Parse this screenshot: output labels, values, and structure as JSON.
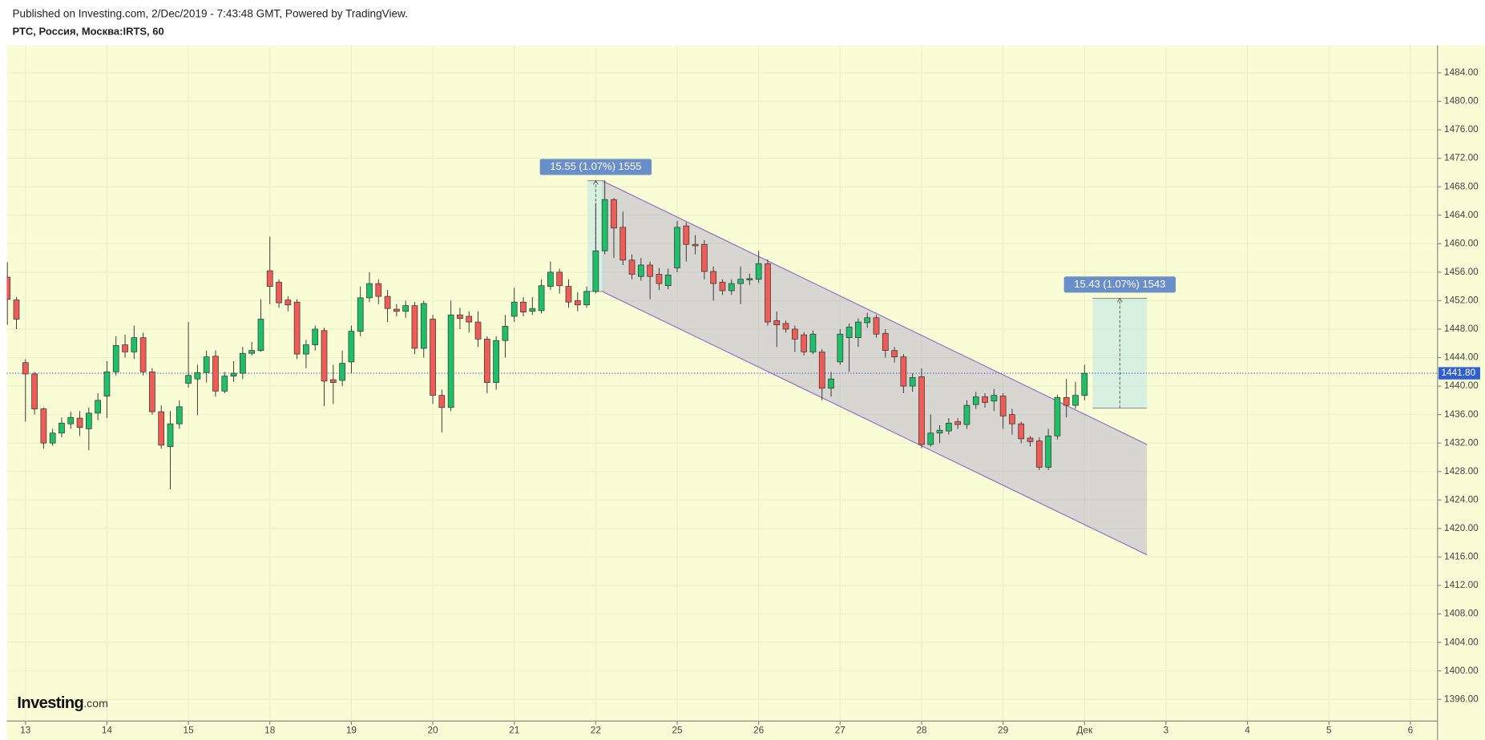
{
  "chart_data": {
    "type": "candlestick",
    "title": "РТС, Россия, Москва:IRTS, 60",
    "subtitle": "Published on Investing.com, 2/Dec/2019 - 7:43:48 GMT, Powered by TradingView.",
    "logo": "Investing",
    "logo_suffix": ".com",
    "up_color": "#1fbf6a",
    "down_color": "#ef5b56",
    "grid": true,
    "open": [
      1455.3,
      1452.1,
      1443.3,
      1441.7,
      1436.8,
      1432.0,
      1433.4,
      1434.7,
      1435.5,
      1434.0,
      1436.2,
      1438.6,
      1442.0,
      1445.8,
      1444.8,
      1446.8,
      1442.0,
      1436.4,
      1431.5,
      1434.7,
      1440.4,
      1441.0,
      1441.9,
      1444.2,
      1439.3,
      1441.4,
      1441.8,
      1444.6,
      1445.0,
      1456.2,
      1454.6,
      1452.1,
      1451.8,
      1444.5,
      1445.8,
      1447.8,
      1440.9,
      1440.8,
      1443.4,
      1447.7,
      1452.4,
      1454.4,
      1452.6,
      1450.8,
      1450.5,
      1451.3,
      1445.3,
      1449.4,
      1438.7,
      1437.0,
      1450.0,
      1449.8,
      1449.0,
      1446.6,
      1440.5,
      1446.4,
      1449.8,
      1451.8,
      1450.5,
      1450.6,
      1454.0,
      1456.0,
      1454.0,
      1452.0,
      1451.4,
      1453.3,
      1459.0,
      1466.2,
      1462.3,
      1457.7,
      1455.4,
      1457.0,
      1455.7,
      1454.1,
      1456.6,
      1462.5,
      1459.9,
      1459.9,
      1456.1,
      1454.6,
      1453.4,
      1454.4,
      1454.9,
      1455.0,
      1457.2,
      1449.2,
      1448.8,
      1448.0,
      1447.2,
      1444.8,
      1444.8,
      1439.7,
      1443.4,
      1446.8,
      1446.8,
      1448.9,
      1449.6,
      1447.4,
      1445.0,
      1444.1,
      1440.0,
      1441.3,
      1431.8,
      1433.4,
      1433.7,
      1435.0,
      1434.6,
      1437.4,
      1438.5,
      1437.9,
      1438.6,
      1436.0,
      1434.7,
      1432.7,
      1432.3,
      1428.6,
      1433.0,
      1438.4,
      1437.3,
      1438.7
    ],
    "high": [
      1457.4,
      1452.5,
      1443.8,
      1442.0,
      1437.0,
      1434.0,
      1435.6,
      1436.4,
      1436.5,
      1437.0,
      1439.0,
      1443.5,
      1447.0,
      1447.2,
      1448.5,
      1447.5,
      1442.5,
      1437.3,
      1436.5,
      1438.0,
      1449.0,
      1443.0,
      1445.0,
      1445.0,
      1442.0,
      1443.5,
      1445.5,
      1446.2,
      1452.2,
      1461.0,
      1455.0,
      1452.6,
      1452.2,
      1446.5,
      1448.5,
      1448.2,
      1443.0,
      1445.0,
      1448.5,
      1454.0,
      1456.0,
      1455.0,
      1453.5,
      1451.5,
      1452.0,
      1451.8,
      1452.0,
      1450.0,
      1439.5,
      1452.0,
      1451.0,
      1450.5,
      1450.5,
      1447.0,
      1447.0,
      1450.0,
      1453.8,
      1452.5,
      1452.5,
      1455.0,
      1457.5,
      1456.5,
      1455.0,
      1453.2,
      1454.0,
      1465.7,
      1468.9,
      1466.4,
      1464.5,
      1458.5,
      1458.0,
      1457.5,
      1456.6,
      1456.5,
      1463.2,
      1463.0,
      1461.2,
      1460.5,
      1456.8,
      1455.0,
      1455.0,
      1456.8,
      1455.8,
      1459.0,
      1457.8,
      1450.5,
      1449.2,
      1448.5,
      1447.6,
      1447.8,
      1445.2,
      1442.0,
      1448.0,
      1448.8,
      1449.5,
      1450.3,
      1450.0,
      1448.0,
      1445.5,
      1444.5,
      1441.8,
      1442.5,
      1436.0,
      1434.5,
      1435.5,
      1435.5,
      1438.0,
      1439.2,
      1439.0,
      1439.6,
      1439.0,
      1436.8,
      1435.0,
      1433.0,
      1432.8,
      1434.0,
      1438.8,
      1441.0,
      1440.6,
      1443.0
    ],
    "low": [
      1448.6,
      1448.0,
      1435.0,
      1436.0,
      1431.2,
      1431.6,
      1432.8,
      1434.0,
      1433.0,
      1431.0,
      1435.2,
      1435.5,
      1441.5,
      1444.0,
      1443.8,
      1441.5,
      1436.0,
      1431.2,
      1425.5,
      1434.0,
      1439.8,
      1435.9,
      1440.5,
      1438.5,
      1439.0,
      1440.6,
      1441.0,
      1444.3,
      1444.8,
      1451.5,
      1451.0,
      1450.5,
      1443.8,
      1442.5,
      1445.0,
      1437.2,
      1437.5,
      1440.0,
      1441.8,
      1447.0,
      1451.8,
      1451.5,
      1449.0,
      1449.8,
      1449.6,
      1444.5,
      1444.0,
      1437.5,
      1433.5,
      1436.5,
      1448.0,
      1447.5,
      1445.5,
      1439.0,
      1439.5,
      1444.0,
      1449.0,
      1449.8,
      1450.0,
      1450.2,
      1453.5,
      1453.0,
      1451.0,
      1450.5,
      1451.0,
      1453.0,
      1458.5,
      1458.0,
      1457.0,
      1455.0,
      1454.8,
      1452.2,
      1453.5,
      1453.6,
      1456.0,
      1457.5,
      1458.5,
      1455.0,
      1452.0,
      1452.8,
      1452.8,
      1451.5,
      1454.2,
      1454.5,
      1448.5,
      1445.5,
      1447.5,
      1444.8,
      1444.3,
      1444.5,
      1438.0,
      1438.5,
      1443.0,
      1442.0,
      1445.5,
      1448.2,
      1446.8,
      1444.0,
      1443.3,
      1439.0,
      1439.2,
      1431.3,
      1431.5,
      1432.0,
      1433.2,
      1434.0,
      1434.0,
      1436.8,
      1437.0,
      1436.5,
      1434.0,
      1433.2,
      1432.0,
      1431.5,
      1428.2,
      1428.2,
      1432.5,
      1435.6,
      1436.8,
      1438.0
    ],
    "close": [
      1452.2,
      1449.4,
      1441.7,
      1436.8,
      1432.0,
      1433.4,
      1434.8,
      1435.6,
      1434.2,
      1436.2,
      1438.0,
      1442.0,
      1445.7,
      1444.8,
      1446.8,
      1442.0,
      1436.4,
      1431.7,
      1434.7,
      1437.1,
      1441.5,
      1441.9,
      1444.1,
      1439.3,
      1441.4,
      1441.8,
      1444.6,
      1445.0,
      1449.4,
      1454.0,
      1451.7,
      1451.4,
      1444.5,
      1445.8,
      1448.0,
      1440.7,
      1440.5,
      1443.2,
      1447.7,
      1452.4,
      1454.4,
      1452.6,
      1450.9,
      1450.5,
      1451.3,
      1445.3,
      1451.6,
      1438.7,
      1437.0,
      1450.0,
      1449.5,
      1449.0,
      1446.6,
      1440.5,
      1446.4,
      1448.4,
      1451.8,
      1450.4,
      1450.9,
      1454.1,
      1456.0,
      1454.1,
      1451.8,
      1451.4,
      1453.3,
      1459.0,
      1466.2,
      1462.2,
      1457.7,
      1455.7,
      1457.0,
      1455.4,
      1454.4,
      1455.6,
      1462.3,
      1459.9,
      1459.7,
      1456.1,
      1454.4,
      1453.4,
      1454.4,
      1455.0,
      1455.1,
      1457.2,
      1449.0,
      1448.6,
      1448.0,
      1446.6,
      1444.8,
      1447.3,
      1439.7,
      1441.0,
      1447.3,
      1448.3,
      1449.0,
      1449.6,
      1447.3,
      1445.0,
      1444.1,
      1440.0,
      1441.2,
      1431.8,
      1433.4,
      1433.8,
      1434.8,
      1434.6,
      1437.3,
      1438.5,
      1437.7,
      1438.7,
      1435.8,
      1434.7,
      1432.6,
      1432.2,
      1428.6,
      1433.0,
      1438.4,
      1437.3,
      1438.7,
      1441.8
    ],
    "xlim": [
      -0.07,
      158.0
    ],
    "xticks": [
      {
        "value": 2,
        "label": "13"
      },
      {
        "value": 11,
        "label": "14"
      },
      {
        "value": 20,
        "label": "15"
      },
      {
        "value": 29,
        "label": "18"
      },
      {
        "value": 38,
        "label": "19"
      },
      {
        "value": 47,
        "label": "20"
      },
      {
        "value": 56,
        "label": "21"
      },
      {
        "value": 65,
        "label": "22"
      },
      {
        "value": 74,
        "label": "25"
      },
      {
        "value": 83,
        "label": "26"
      },
      {
        "value": 92,
        "label": "27"
      },
      {
        "value": 101,
        "label": "28"
      },
      {
        "value": 110,
        "label": "29"
      },
      {
        "value": 119,
        "label": "Дек"
      },
      {
        "value": 128,
        "label": "3"
      },
      {
        "value": 137,
        "label": "4"
      },
      {
        "value": 146,
        "label": "5"
      },
      {
        "value": 155,
        "label": "6"
      }
    ],
    "ylim": [
      1392.95,
      1487.85
    ],
    "yticks": [
      {
        "value": 1396,
        "label": "1396.00"
      },
      {
        "value": 1400,
        "label": "1400.00"
      },
      {
        "value": 1404,
        "label": "1404.00"
      },
      {
        "value": 1408,
        "label": "1408.00"
      },
      {
        "value": 1412,
        "label": "1412.00"
      },
      {
        "value": 1416,
        "label": "1416.00"
      },
      {
        "value": 1420,
        "label": "1420.00"
      },
      {
        "value": 1424,
        "label": "1424.00"
      },
      {
        "value": 1428,
        "label": "1428.00"
      },
      {
        "value": 1432,
        "label": "1432.00"
      },
      {
        "value": 1436,
        "label": "1436.00"
      },
      {
        "value": 1440,
        "label": "1440.00"
      },
      {
        "value": 1444,
        "label": "1444.00"
      },
      {
        "value": 1448,
        "label": "1448.00"
      },
      {
        "value": 1452,
        "label": "1452.00"
      },
      {
        "value": 1456,
        "label": "1456.00"
      },
      {
        "value": 1460,
        "label": "1460.00"
      },
      {
        "value": 1464,
        "label": "1464.00"
      },
      {
        "value": 1468,
        "label": "1468.00"
      },
      {
        "value": 1472,
        "label": "1472.00"
      },
      {
        "value": 1476,
        "label": "1476.00"
      },
      {
        "value": 1480,
        "label": "1480.00"
      },
      {
        "value": 1484,
        "label": "1484.00"
      }
    ],
    "last_price": {
      "value": 1441.8,
      "label": "1441.80"
    },
    "channel": {
      "upper": {
        "x": [
          65.7,
          125.9
        ],
        "y": [
          1468.85,
          1431.8
        ]
      },
      "lower": {
        "x": [
          65.7,
          125.9
        ],
        "y": [
          1453.3,
          1416.3
        ]
      }
    },
    "measures": [
      {
        "label": "15.55 (1.07%) 1555",
        "x": [
          64.1,
          65.9
        ],
        "y": [
          1453.3,
          1468.85
        ]
      },
      {
        "label": "15.43 (1.07%) 1543",
        "x": [
          119.9,
          125.9
        ],
        "y": [
          1436.9,
          1452.33
        ]
      }
    ]
  }
}
